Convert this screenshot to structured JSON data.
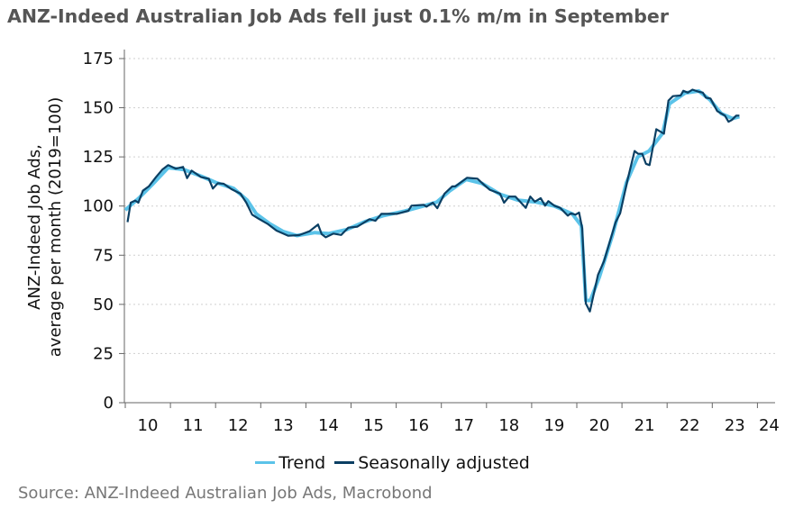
{
  "title": "ANZ-Indeed Australian Job Ads fell just 0.1% m/m in September",
  "source": "Source: ANZ-Indeed Australian Job Ads, Macrobond",
  "colors": {
    "trend": "#5bc3e9",
    "sa": "#0b3f63",
    "grid": "#cfcfcf",
    "axis": "#666666"
  },
  "chart_data": {
    "type": "line",
    "title": "ANZ-Indeed Australian Job Ads fell just 0.1% m/m in September",
    "xlabel": "",
    "ylabel": [
      "ANZ-Indeed Job Ads,",
      "average per month (2019=100)"
    ],
    "ylim": [
      0,
      175
    ],
    "xlim": [
      2010,
      2024.4
    ],
    "yticks": [
      "0",
      "25",
      "50",
      "75",
      "100",
      "125",
      "150",
      "175"
    ],
    "xticks": [
      "10",
      "11",
      "12",
      "13",
      "14",
      "15",
      "16",
      "17",
      "18",
      "19",
      "20",
      "21",
      "22",
      "23",
      "24"
    ],
    "grid": true,
    "legend_position": "bottom",
    "series": [
      {
        "name": "Trend",
        "x": [
          2010.0,
          2010.3,
          2010.6,
          2010.95,
          2011.3,
          2011.7,
          2012.0,
          2012.4,
          2012.7,
          2012.9,
          2013.2,
          2013.5,
          2013.8,
          2014.2,
          2014.5,
          2014.9,
          2015.3,
          2015.7,
          2016.2,
          2016.6,
          2016.9,
          2017.2,
          2017.55,
          2017.9,
          2018.3,
          2018.7,
          2019.1,
          2019.5,
          2019.9,
          2020.1,
          2020.2,
          2020.3,
          2020.5,
          2020.8,
          2021.1,
          2021.35,
          2021.6,
          2021.9,
          2022.05,
          2022.4,
          2022.7,
          2022.95,
          2023.2,
          2023.45,
          2023.6
        ],
        "values": [
          98,
          104,
          111,
          119.5,
          118.5,
          115,
          112,
          109,
          103,
          96,
          91,
          87,
          85,
          86.5,
          86,
          88,
          92,
          95,
          97.5,
          100,
          102,
          108,
          113.5,
          111.5,
          106,
          103,
          102,
          100,
          96,
          90,
          52,
          52,
          64,
          86,
          112,
          125,
          128,
          137,
          152,
          157.5,
          158.5,
          154,
          147,
          144.5,
          145.5
        ]
      },
      {
        "name": "Seasonally adjusted",
        "x": [
          2010.05,
          2010.12,
          2010.22,
          2010.29,
          2010.39,
          2010.52,
          2010.68,
          2010.82,
          2010.95,
          2011.12,
          2011.28,
          2011.37,
          2011.47,
          2011.68,
          2011.85,
          2011.94,
          2012.05,
          2012.18,
          2012.35,
          2012.55,
          2012.68,
          2012.81,
          2012.95,
          2013.15,
          2013.35,
          2013.61,
          2013.85,
          2014.08,
          2014.27,
          2014.35,
          2014.44,
          2014.61,
          2014.78,
          2014.94,
          2015.14,
          2015.41,
          2015.54,
          2015.67,
          2016.01,
          2016.27,
          2016.34,
          2016.61,
          2016.67,
          2016.81,
          2016.91,
          2017.07,
          2017.24,
          2017.31,
          2017.57,
          2017.8,
          2017.94,
          2018.07,
          2018.3,
          2018.39,
          2018.5,
          2018.64,
          2018.87,
          2018.97,
          2019.07,
          2019.2,
          2019.3,
          2019.37,
          2019.5,
          2019.63,
          2019.8,
          2019.87,
          2019.97,
          2020.05,
          2020.12,
          2020.2,
          2020.29,
          2020.47,
          2020.6,
          2020.86,
          2020.96,
          2021.13,
          2021.28,
          2021.36,
          2021.45,
          2021.53,
          2021.61,
          2021.76,
          2021.93,
          2022.03,
          2022.13,
          2022.3,
          2022.36,
          2022.46,
          2022.56,
          2022.69,
          2022.79,
          2022.86,
          2022.96,
          2023.11,
          2023.23,
          2023.28,
          2023.36,
          2023.43,
          2023.53,
          2023.6
        ],
        "values": [
          91.8,
          101.7,
          102.8,
          101.7,
          107.8,
          110,
          114.7,
          118.5,
          120.8,
          119,
          119.9,
          114.2,
          118,
          114.7,
          113.9,
          108.9,
          111.6,
          111.3,
          108.6,
          106.3,
          101.7,
          95.6,
          93.6,
          91,
          87.5,
          84.9,
          85.2,
          87.2,
          90.6,
          85.7,
          84.1,
          86,
          85.3,
          89,
          89.5,
          93.3,
          92.5,
          96,
          96,
          97.6,
          100.2,
          100.6,
          99.7,
          101.7,
          98.9,
          106.3,
          110,
          110,
          114.4,
          113.9,
          110.9,
          108.3,
          106.3,
          101.7,
          104.8,
          104.8,
          99.1,
          104.8,
          102.2,
          104,
          100.2,
          102.5,
          100.2,
          99.1,
          95.1,
          96.3,
          95.6,
          96.7,
          88.7,
          50.5,
          46.4,
          65,
          71.9,
          91.8,
          96.3,
          113.9,
          128,
          126.6,
          126.6,
          121.5,
          120.8,
          139.1,
          136.8,
          153.6,
          155.9,
          156.2,
          158.6,
          157.7,
          159.2,
          158.2,
          157.7,
          155.1,
          154.7,
          148.3,
          146.7,
          146,
          142.9,
          143.7,
          146,
          146
        ]
      }
    ]
  }
}
